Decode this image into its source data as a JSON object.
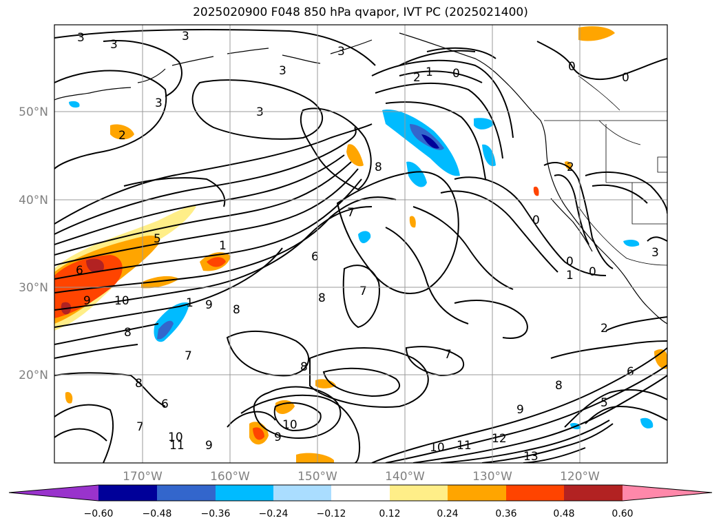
{
  "title": "2025020900 F048 850 hPa qvapor, IVT PC (2025021400)",
  "map": {
    "lat_labels": [
      "50°N",
      "40°N",
      "30°N",
      "20°N"
    ],
    "lon_labels": [
      "170°W",
      "160°W",
      "150°W",
      "140°W",
      "130°W",
      "120°W"
    ],
    "contour_labels": [
      "3",
      "3",
      "3",
      "3",
      "3",
      "3",
      "2",
      "1",
      "0",
      "0",
      "0",
      "2",
      "2",
      "1",
      "0",
      "0",
      "3",
      "8",
      "7",
      "6",
      "8",
      "7",
      "5",
      "6",
      "9",
      "10",
      "1",
      "8",
      "8",
      "9",
      "7",
      "6",
      "8",
      "7",
      "8",
      "9",
      "10",
      "11",
      "9",
      "10",
      "10",
      "11",
      "12",
      "13",
      "9",
      "8",
      "6",
      "2",
      "5",
      "7",
      "1",
      "0",
      "3"
    ],
    "colors": {
      "negative": [
        "#9933cc",
        "#000099",
        "#3366cc",
        "#00bbff",
        "#aaddff"
      ],
      "positive": [
        "#ffee88",
        "#ffa500",
        "#ff4400",
        "#b22222",
        "#ff88aa"
      ],
      "contour": "#000000",
      "grid": "#999999"
    }
  },
  "colorbar": {
    "ticks": [
      "−0.60",
      "−0.48",
      "−0.36",
      "−0.24",
      "−0.12",
      "0.12",
      "0.24",
      "0.36",
      "0.48",
      "0.60"
    ],
    "colors": [
      "#9933cc",
      "#000099",
      "#3366cc",
      "#00bbff",
      "#aaddff",
      "#ffffff",
      "#ffee88",
      "#ffa500",
      "#ff4400",
      "#b22222",
      "#ff88aa"
    ]
  }
}
